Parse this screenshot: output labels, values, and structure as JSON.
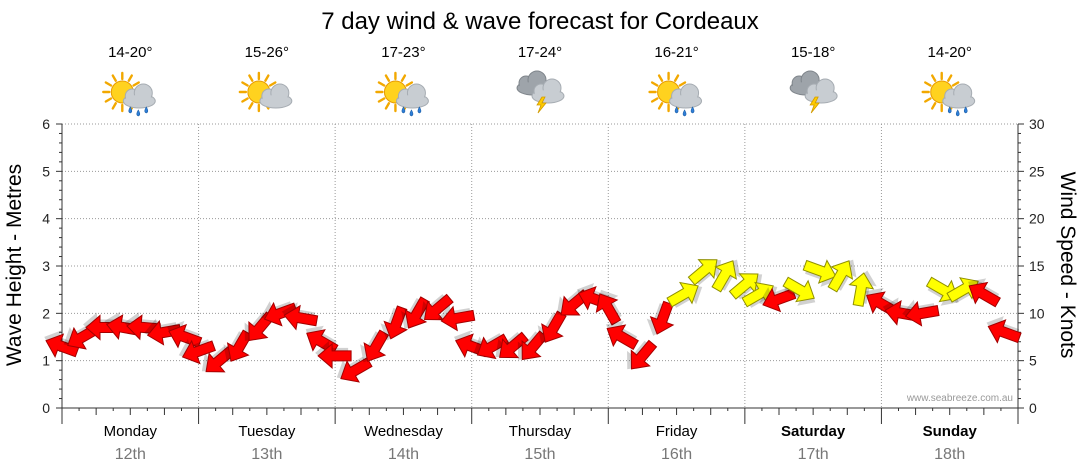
{
  "chart_data": {
    "type": "line",
    "title": "7 day wind & wave forecast for Cordeaux",
    "ylabel": "Wave Height - Metres",
    "y2label": "Wind Speed - Knots",
    "ylim": [
      0,
      6
    ],
    "y2lim": [
      0,
      30
    ],
    "yticks": [
      "0",
      "1",
      "2",
      "3",
      "4",
      "5",
      "6"
    ],
    "y2ticks": [
      "0",
      "5",
      "10",
      "15",
      "20",
      "25",
      "30"
    ],
    "grid": true,
    "watermark": "www.seabreeze.com.au",
    "days": [
      {
        "name": "Monday",
        "date": "12th",
        "temp": "14-20°",
        "weather": "sun-cloud-rain",
        "bold": false
      },
      {
        "name": "Tuesday",
        "date": "13th",
        "temp": "15-26°",
        "weather": "sun-cloud",
        "bold": false
      },
      {
        "name": "Wednesday",
        "date": "14th",
        "temp": "17-23°",
        "weather": "sun-cloud-rain",
        "bold": false
      },
      {
        "name": "Thursday",
        "date": "15th",
        "temp": "17-24°",
        "weather": "cloud-storm",
        "bold": false
      },
      {
        "name": "Friday",
        "date": "16th",
        "temp": "16-21°",
        "weather": "sun-cloud-rain",
        "bold": false
      },
      {
        "name": "Saturday",
        "date": "17th",
        "temp": "15-18°",
        "weather": "cloud-storm",
        "bold": true
      },
      {
        "name": "Sunday",
        "date": "18th",
        "temp": "14-20°",
        "weather": "sun-cloud-rain",
        "bold": true
      }
    ],
    "series": [
      {
        "name": "Wind Speed (knots)",
        "x_days": [
          0.0,
          0.15,
          0.3,
          0.45,
          0.6,
          0.75,
          0.9,
          1.0,
          1.15,
          1.3,
          1.45,
          1.6,
          1.75,
          1.9,
          2.0,
          2.15,
          2.3,
          2.45,
          2.6,
          2.75,
          2.9,
          3.0,
          3.15,
          3.3,
          3.45,
          3.6,
          3.75,
          3.9,
          4.0,
          4.1,
          4.25,
          4.4,
          4.55,
          4.7,
          4.85,
          5.0,
          5.1,
          5.25,
          5.4,
          5.55,
          5.7,
          5.85,
          6.0,
          6.15,
          6.3,
          6.45,
          6.6,
          6.75,
          6.9
        ],
        "values": [
          6.5,
          7.5,
          8.5,
          8.5,
          8.5,
          8.0,
          7.5,
          6.0,
          5.0,
          6.5,
          8.5,
          10.0,
          9.5,
          7.0,
          5.5,
          4.0,
          6.5,
          9.0,
          10.0,
          10.5,
          9.5,
          6.5,
          6.5,
          6.5,
          6.5,
          8.5,
          11.0,
          11.5,
          10.5,
          7.5,
          5.5,
          9.5,
          12.0,
          14.5,
          14.0,
          13.0,
          12.0,
          11.5,
          12.5,
          14.5,
          14.0,
          12.5,
          11.0,
          10.0,
          10.0,
          12.5,
          12.5,
          12.0,
          8.0
        ],
        "colors": [
          "red",
          "red",
          "red",
          "red",
          "red",
          "red",
          "red",
          "red",
          "red",
          "red",
          "red",
          "red",
          "red",
          "red",
          "red",
          "red",
          "red",
          "red",
          "red",
          "red",
          "red",
          "red",
          "red",
          "red",
          "red",
          "red",
          "red",
          "red",
          "red",
          "red",
          "red",
          "red",
          "yellow",
          "yellow",
          "yellow",
          "yellow",
          "yellow",
          "red",
          "yellow",
          "yellow",
          "yellow",
          "yellow",
          "red",
          "red",
          "red",
          "yellow",
          "yellow",
          "red",
          "red"
        ],
        "directions_deg": [
          200,
          150,
          180,
          190,
          185,
          170,
          200,
          160,
          140,
          120,
          130,
          160,
          190,
          210,
          180,
          150,
          120,
          110,
          120,
          140,
          170,
          200,
          150,
          140,
          130,
          120,
          140,
          200,
          240,
          210,
          130,
          110,
          330,
          320,
          300,
          320,
          330,
          160,
          30,
          20,
          300,
          280,
          210,
          190,
          170,
          30,
          330,
          210,
          200
        ]
      }
    ]
  }
}
